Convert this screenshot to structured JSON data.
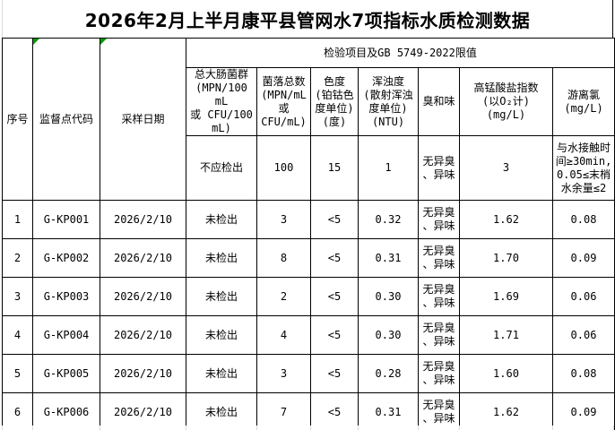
{
  "title": "2026年2月上半月康平县管网水7项指标水质检测数据",
  "colors": {
    "border": "#000000",
    "error_indicator_green": "#009b00",
    "gridline_gray": "#d9d9d9",
    "text": "#000000",
    "background": "#ffffff"
  },
  "icons": {
    "cell_flag": "excel-green-corner-triangle"
  },
  "table": {
    "corner": {
      "seq": "序号",
      "site": "监督点代码",
      "date": "采样日期"
    },
    "group_header": "检验项目及GB 5749-2022限值",
    "item_headers": [
      "总大肠菌群\n(MPN/100 mL\n或 CFU/100\nmL)",
      "菌落总数\n(MPN/mL\n或\nCFU/mL)",
      "色度\n(铂钴色\n度单位)\n(度)",
      "浑浊度\n(散射浑浊\n度单位)\n(NTU)",
      "臭和味",
      "高锰酸盐指数\n(以O₂计)\n(mg/L)",
      "游离氯\n(mg/L)"
    ],
    "limits": [
      "不应检出",
      "100",
      "15",
      "1",
      "无异臭\n、异味",
      "3",
      "与水接触时间≥30min,0.05≤末梢水余量≤2"
    ],
    "rows": [
      {
        "seq": "1",
        "site": "G-KP001",
        "date": "2026/2/10",
        "coliform": "未检出",
        "colony": "3",
        "color": "<5",
        "turbidity": "0.32",
        "odor": "无异臭\n、异味",
        "permanganate": "1.62",
        "chlorine": "0.08"
      },
      {
        "seq": "2",
        "site": "G-KP002",
        "date": "2026/2/10",
        "coliform": "未检出",
        "colony": "8",
        "color": "<5",
        "turbidity": "0.31",
        "odor": "无异臭\n、异味",
        "permanganate": "1.70",
        "chlorine": "0.09"
      },
      {
        "seq": "3",
        "site": "G-KP003",
        "date": "2026/2/10",
        "coliform": "未检出",
        "colony": "2",
        "color": "<5",
        "turbidity": "0.30",
        "odor": "无异臭\n、异味",
        "permanganate": "1.69",
        "chlorine": "0.06"
      },
      {
        "seq": "4",
        "site": "G-KP004",
        "date": "2026/2/10",
        "coliform": "未检出",
        "colony": "4",
        "color": "<5",
        "turbidity": "0.30",
        "odor": "无异臭\n、异味",
        "permanganate": "1.71",
        "chlorine": "0.06"
      },
      {
        "seq": "5",
        "site": "G-KP005",
        "date": "2026/2/10",
        "coliform": "未检出",
        "colony": "3",
        "color": "<5",
        "turbidity": "0.28",
        "odor": "无异臭\n、异味",
        "permanganate": "1.60",
        "chlorine": "0.08"
      },
      {
        "seq": "6",
        "site": "G-KP006",
        "date": "2026/2/10",
        "coliform": "未检出",
        "colony": "7",
        "color": "<5",
        "turbidity": "0.31",
        "odor": "无异臭\n、异味",
        "permanganate": "1.62",
        "chlorine": "0.09"
      }
    ]
  }
}
